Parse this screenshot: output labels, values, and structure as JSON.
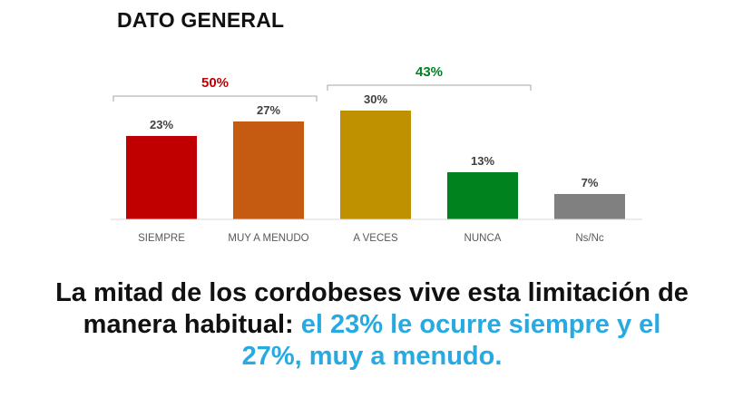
{
  "header": {
    "title": "DATO GENERAL"
  },
  "chart_data": {
    "type": "bar",
    "categories": [
      "SIEMPRE",
      "MUY A MENUDO",
      "A VECES",
      "NUNCA",
      "Ns/Nc"
    ],
    "values": [
      23,
      27,
      30,
      13,
      7
    ],
    "value_labels": [
      "23%",
      "27%",
      "30%",
      "13%",
      "7%"
    ],
    "colors": [
      "#c00000",
      "#c55a11",
      "#bf9000",
      "#00821e",
      "#808080"
    ],
    "ylim": [
      0,
      35
    ],
    "grid": false,
    "groups": [
      {
        "label": "50%",
        "from": 0,
        "to": 1,
        "color": "#c00000"
      },
      {
        "label": "43%",
        "from": 2,
        "to": 3,
        "color": "#00821e"
      }
    ]
  },
  "caption": {
    "part1": "La mitad de los cordobeses vive esta limitación de manera habitual: ",
    "part2": "el 23% le ocurre siempre y el 27%, muy a menudo."
  },
  "colors": {
    "highlight": "#27a9e1",
    "text": "#111111"
  }
}
